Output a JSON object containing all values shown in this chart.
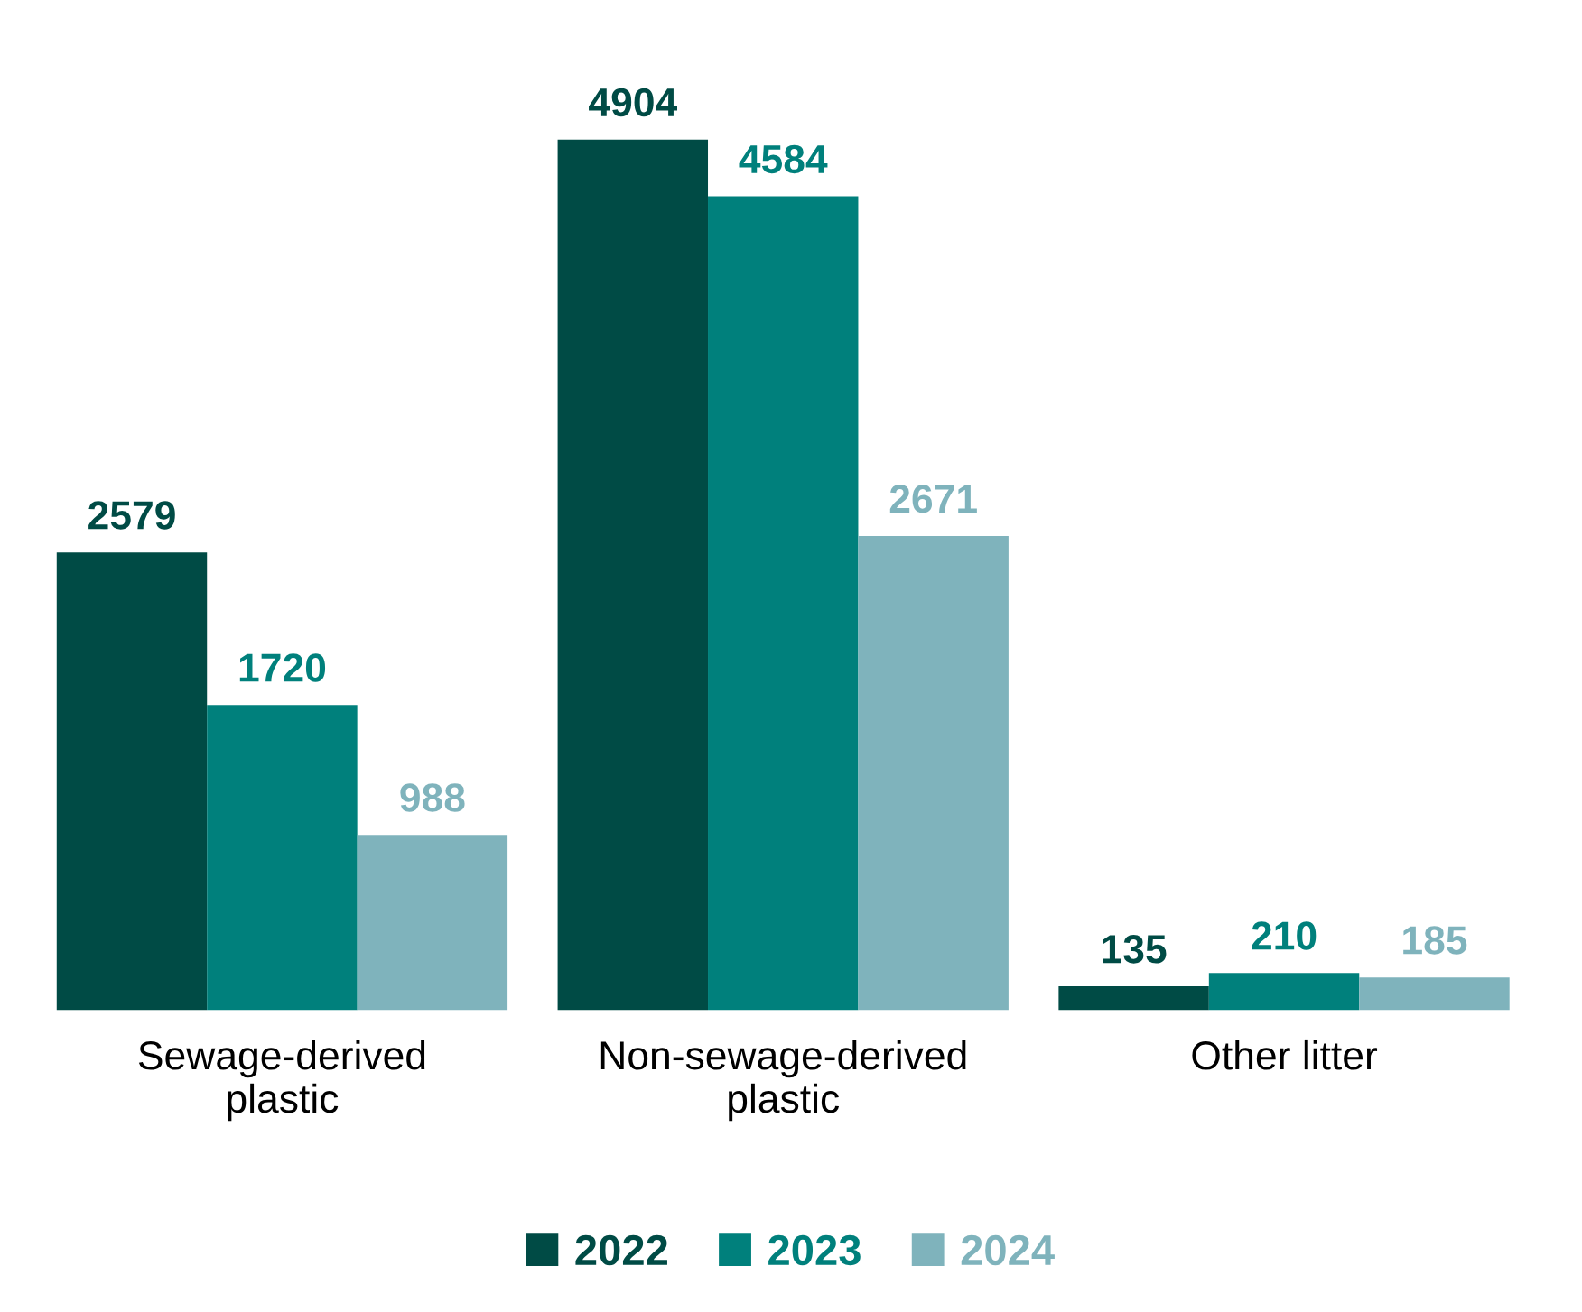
{
  "chart_data": {
    "type": "bar",
    "categories": [
      "Sewage-derived\nplastic",
      "Non-sewage-derived\nplastic",
      "Other litter"
    ],
    "series": [
      {
        "name": "2022",
        "color": "#004b45",
        "values": [
          2579,
          4904,
          135
        ]
      },
      {
        "name": "2023",
        "color": "#00807c",
        "values": [
          1720,
          4584,
          210
        ]
      },
      {
        "name": "2024",
        "color": "#7fb3bc",
        "values": [
          988,
          2671,
          185
        ]
      }
    ],
    "data_labels": true,
    "legend": "bottom",
    "grid": false
  }
}
